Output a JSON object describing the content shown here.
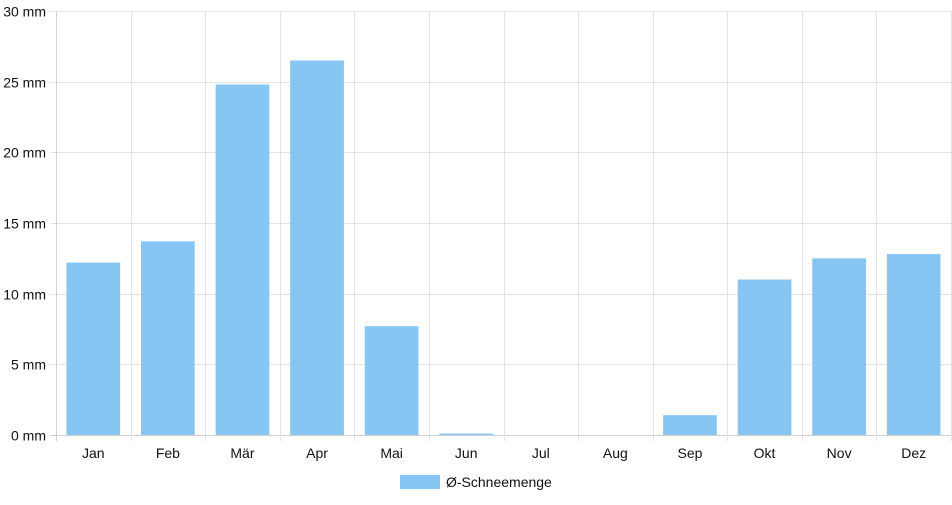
{
  "chart_data": {
    "type": "bar",
    "categories": [
      "Jan",
      "Feb",
      "Mär",
      "Apr",
      "Mai",
      "Jun",
      "Jul",
      "Aug",
      "Sep",
      "Okt",
      "Nov",
      "Dez"
    ],
    "series": [
      {
        "name": "Ø-Schneemenge",
        "color": "#87c5f2",
        "values": [
          12.2,
          13.7,
          24.8,
          26.5,
          7.7,
          0.1,
          0,
          0,
          1.4,
          11.0,
          12.5,
          12.8
        ]
      }
    ],
    "yticks": [
      "0 mm",
      "5 mm",
      "10 mm",
      "15 mm",
      "20 mm",
      "25 mm",
      "30 mm"
    ],
    "ylim": [
      0,
      30
    ],
    "grid": true,
    "legend_position": "bottom-center"
  }
}
